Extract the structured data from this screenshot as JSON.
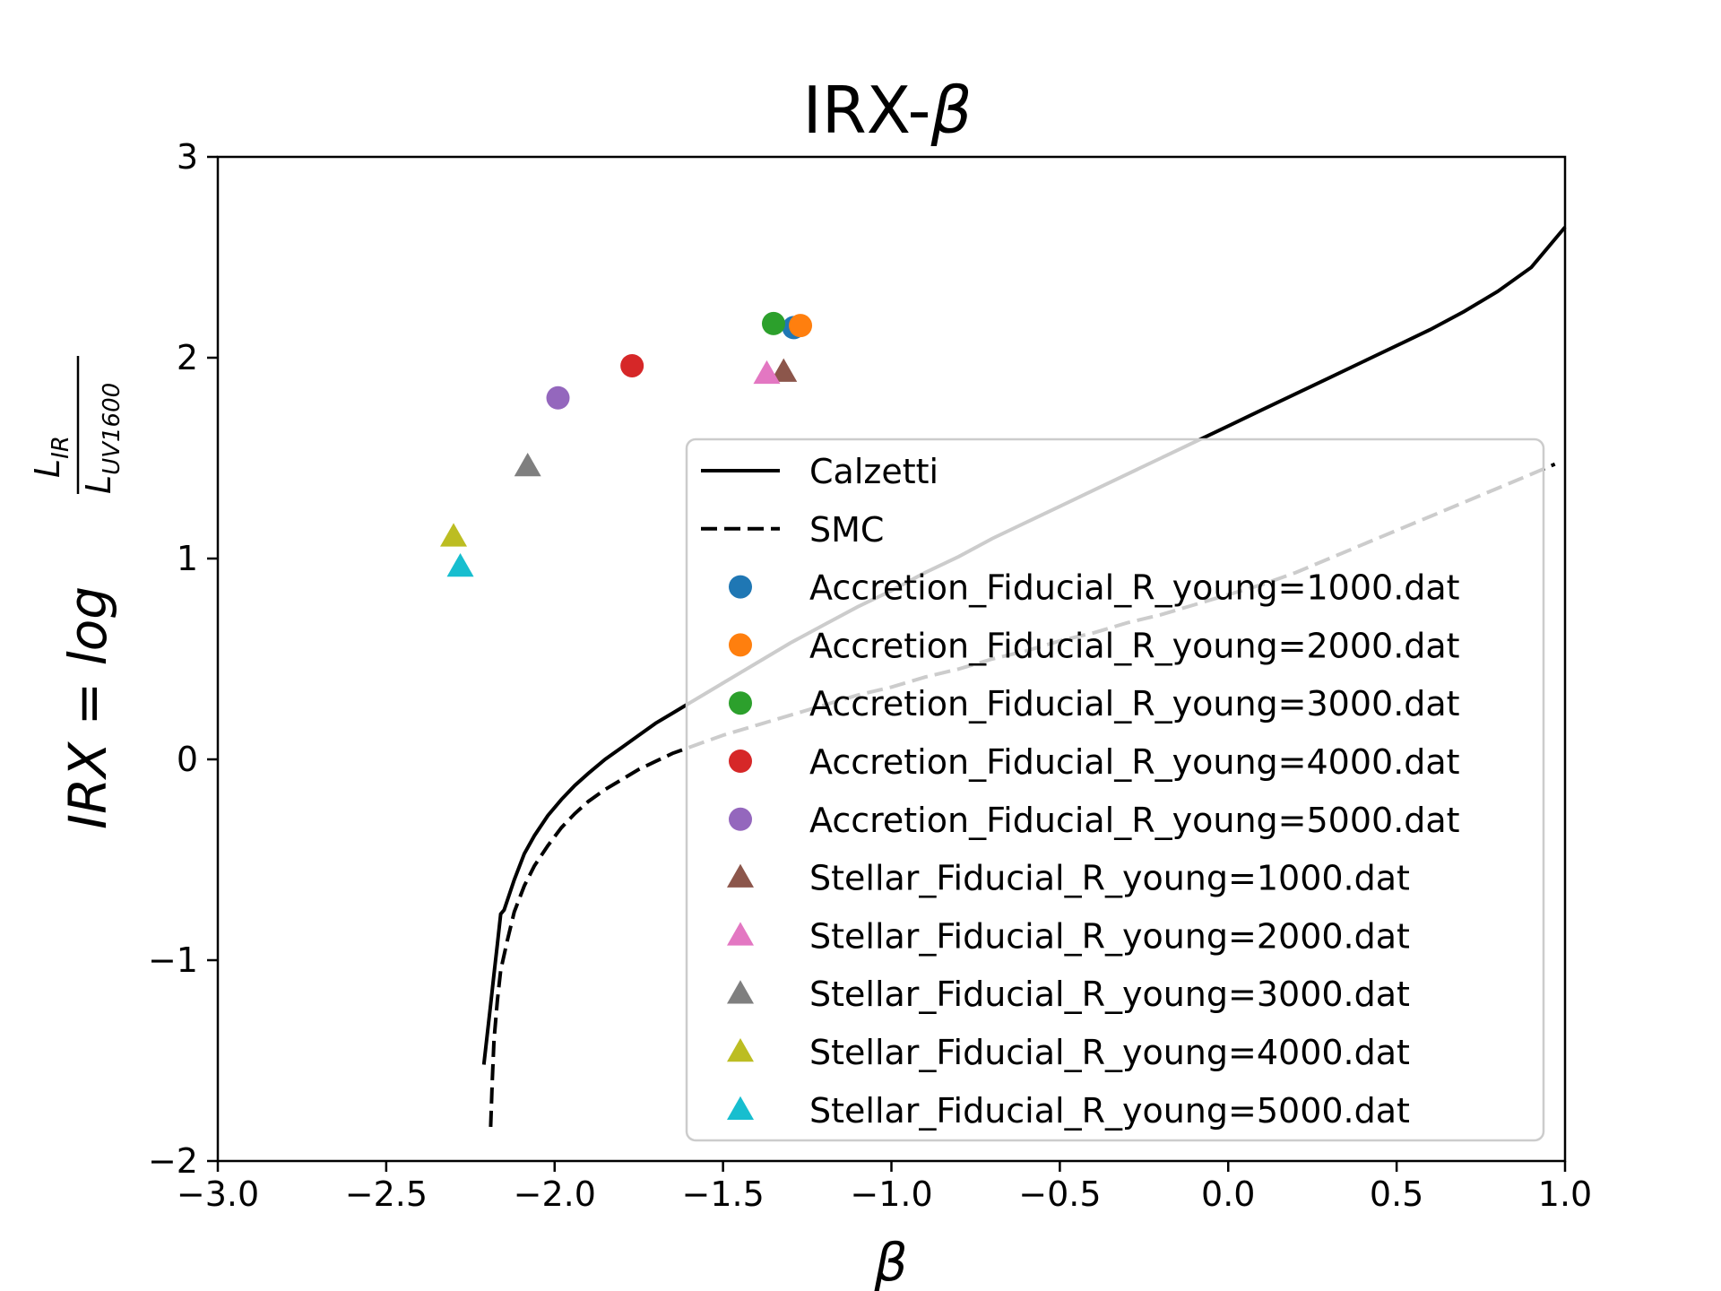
{
  "chart_data": {
    "type": "scatter",
    "title_main": "IRX-",
    "title_greek": "β",
    "xlabel": "β",
    "ylabel": {
      "prefix": "IRX = log",
      "numerator": "L",
      "numerator_sub": "IR",
      "denominator": "L",
      "denominator_sub": "UV1600"
    },
    "xlim": [
      -3.0,
      1.0
    ],
    "ylim": [
      -2,
      3
    ],
    "x_ticks": [
      -3.0,
      -2.5,
      -2.0,
      -1.5,
      -1.0,
      -0.5,
      0.0,
      0.5,
      1.0
    ],
    "x_tick_labels": [
      "−3.0",
      "−2.5",
      "−2.0",
      "−1.5",
      "−1.0",
      "−0.5",
      "0.0",
      "0.5",
      "1.0"
    ],
    "y_ticks": [
      -2,
      -1,
      0,
      1,
      2,
      3
    ],
    "y_tick_labels": [
      "−2",
      "−1",
      "0",
      "1",
      "2",
      "3"
    ],
    "grid": false,
    "legend_position": "lower-right",
    "lines": [
      {
        "name": "Calzetti",
        "style": "solid",
        "color": "#000000",
        "x": [
          -2.21,
          -2.2,
          -2.19,
          -2.18,
          -2.17,
          -2.16,
          -2.15,
          -2.12,
          -2.09,
          -2.06,
          -2.02,
          -1.98,
          -1.94,
          -1.9,
          -1.85,
          -1.8,
          -1.75,
          -1.7,
          -1.65,
          -1.6,
          -1.55,
          -1.5,
          -1.45,
          -1.4,
          -1.3,
          -1.2,
          -1.1,
          -1.0,
          -0.9,
          -0.8,
          -0.7,
          -0.6,
          -0.5,
          -0.4,
          -0.3,
          -0.2,
          -0.1,
          0.0,
          0.1,
          0.2,
          0.3,
          0.4,
          0.5,
          0.6,
          0.7,
          0.8,
          0.9,
          1.0
        ],
        "y": [
          -1.52,
          -1.37,
          -1.22,
          -1.07,
          -0.92,
          -0.77,
          -0.75,
          -0.6,
          -0.47,
          -0.38,
          -0.28,
          -0.2,
          -0.13,
          -0.07,
          0.0,
          0.06,
          0.12,
          0.18,
          0.23,
          0.28,
          0.33,
          0.38,
          0.43,
          0.48,
          0.58,
          0.67,
          0.76,
          0.84,
          0.93,
          1.01,
          1.1,
          1.18,
          1.26,
          1.34,
          1.42,
          1.5,
          1.58,
          1.66,
          1.74,
          1.82,
          1.9,
          1.98,
          2.06,
          2.14,
          2.23,
          2.33,
          2.45,
          2.65
        ]
      },
      {
        "name": "SMC",
        "style": "dashed",
        "color": "#000000",
        "x": [
          -2.19,
          -2.185,
          -2.18,
          -2.17,
          -2.16,
          -2.14,
          -2.12,
          -2.09,
          -2.06,
          -2.02,
          -1.98,
          -1.94,
          -1.9,
          -1.85,
          -1.8,
          -1.75,
          -1.7,
          -1.65,
          -1.6,
          -1.55,
          -1.5,
          -1.4,
          -1.3,
          -1.2,
          -1.1,
          -1.0,
          -0.9,
          -0.8,
          -0.7,
          -0.6,
          -0.5,
          -0.4,
          -0.3,
          -0.2,
          -0.1,
          0.0,
          0.1,
          0.2,
          0.3,
          0.4,
          0.5,
          0.6,
          0.7,
          0.8,
          0.9,
          0.97
        ],
        "y": [
          -1.83,
          -1.6,
          -1.4,
          -1.2,
          -1.05,
          -0.9,
          -0.76,
          -0.63,
          -0.53,
          -0.43,
          -0.34,
          -0.27,
          -0.21,
          -0.15,
          -0.1,
          -0.05,
          -0.01,
          0.03,
          0.06,
          0.09,
          0.12,
          0.17,
          0.22,
          0.27,
          0.32,
          0.36,
          0.41,
          0.45,
          0.5,
          0.54,
          0.59,
          0.63,
          0.68,
          0.72,
          0.77,
          0.82,
          0.87,
          0.93,
          1.0,
          1.07,
          1.14,
          1.21,
          1.28,
          1.35,
          1.42,
          1.47
        ]
      }
    ],
    "series": [
      {
        "name": "Accretion_Fiducial_R_young=1000.dat",
        "marker": "circle",
        "color": "#1f77b4",
        "x": -1.29,
        "y": 2.15
      },
      {
        "name": "Accretion_Fiducial_R_young=2000.dat",
        "marker": "circle",
        "color": "#ff7f0e",
        "x": -1.27,
        "y": 2.16
      },
      {
        "name": "Accretion_Fiducial_R_young=3000.dat",
        "marker": "circle",
        "color": "#2ca02c",
        "x": -1.35,
        "y": 2.17
      },
      {
        "name": "Accretion_Fiducial_R_young=4000.dat",
        "marker": "circle",
        "color": "#d62728",
        "x": -1.77,
        "y": 1.96
      },
      {
        "name": "Accretion_Fiducial_R_young=5000.dat",
        "marker": "circle",
        "color": "#9467bd",
        "x": -1.99,
        "y": 1.8
      },
      {
        "name": "Stellar_Fiducial_R_young=1000.dat",
        "marker": "triangle",
        "color": "#8c564b",
        "x": -1.32,
        "y": 1.93
      },
      {
        "name": "Stellar_Fiducial_R_young=2000.dat",
        "marker": "triangle",
        "color": "#e377c2",
        "x": -1.37,
        "y": 1.92
      },
      {
        "name": "Stellar_Fiducial_R_young=3000.dat",
        "marker": "triangle",
        "color": "#7f7f7f",
        "x": -2.08,
        "y": 1.46
      },
      {
        "name": "Stellar_Fiducial_R_young=4000.dat",
        "marker": "triangle",
        "color": "#bcbd22",
        "x": -2.3,
        "y": 1.11
      },
      {
        "name": "Stellar_Fiducial_R_young=5000.dat",
        "marker": "triangle",
        "color": "#17becf",
        "x": -2.28,
        "y": 0.96
      }
    ]
  }
}
